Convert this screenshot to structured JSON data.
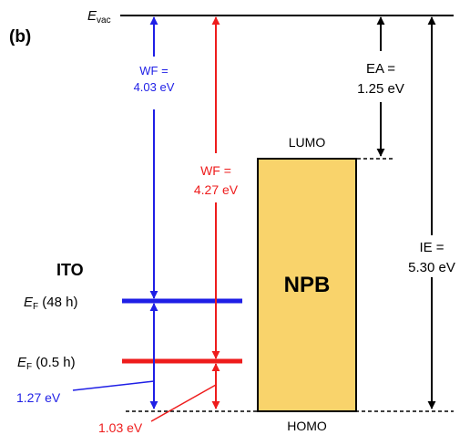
{
  "panel_label": "(b)",
  "vacuum": {
    "symbol": "E",
    "subscript": "vac"
  },
  "ito_label": "ITO",
  "fermi_48h": {
    "symbol": "E",
    "subscript": "F",
    "suffix": " (48 h)"
  },
  "fermi_05h": {
    "symbol": "E",
    "subscript": "F",
    "suffix": " (0.5 h)"
  },
  "wf_blue": {
    "line1": "WF =",
    "line2": "4.03 eV"
  },
  "wf_red": {
    "line1": "WF =",
    "line2": "4.27 eV"
  },
  "ea": {
    "line1": "EA =",
    "line2": "1.25 eV"
  },
  "ie": {
    "line1": "IE =",
    "line2": "5.30 eV"
  },
  "lumo_label": "LUMO",
  "homo_label": "HOMO",
  "npb_label": "NPB",
  "gap_blue": "1.27 eV",
  "gap_red": "1.03 eV",
  "colors": {
    "blue": "#1f1fe6",
    "red": "#ee1c1c",
    "npb_fill": "#f9d36b",
    "black": "#000000"
  }
}
